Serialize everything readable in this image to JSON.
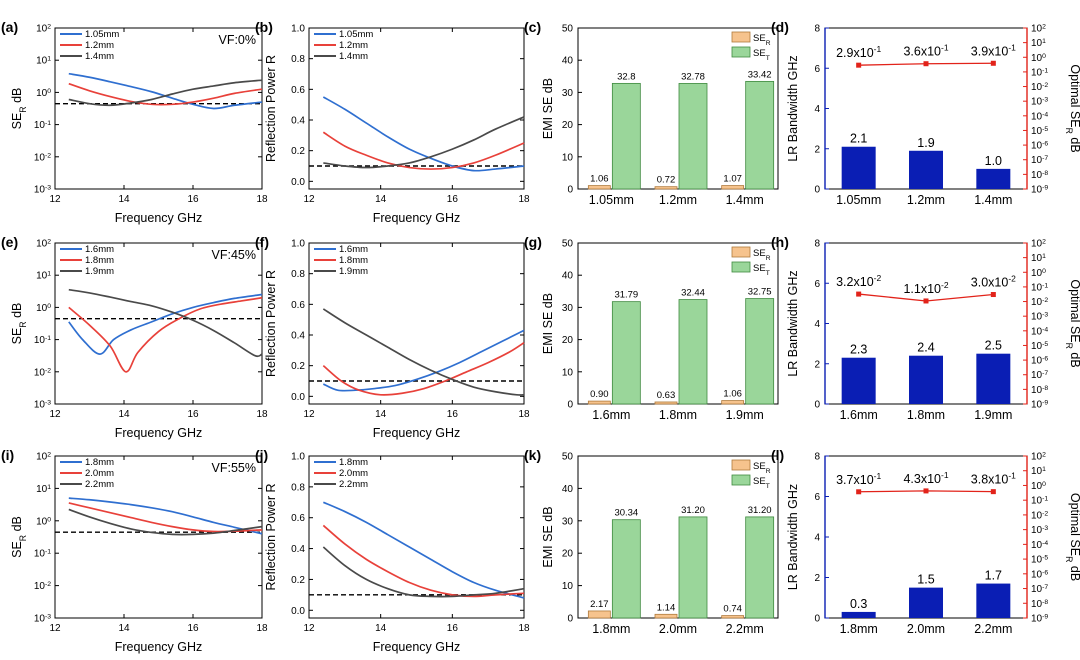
{
  "colors": {
    "blue": "#2f6fd0",
    "red": "#e8413a",
    "gray": "#4a4a4a",
    "bar_r": "#f6c38d",
    "bar_t": "#9ad69a",
    "navy": "#0a1eb4",
    "opt": "#e2231a"
  },
  "chart_data": [
    {
      "panel": "(a)",
      "type": "line",
      "annotation": "VF:0%",
      "xlabel": "Frequency GHz",
      "ylabel": "SE_R dB",
      "log": true,
      "xticks": [
        "12",
        "14",
        "16",
        "18"
      ],
      "yticks": [
        "10^-3",
        "10^-2",
        "10^-1",
        "10^0",
        "10^1",
        "10^2"
      ],
      "xlim": [
        12,
        18
      ],
      "ylim": [
        -3,
        2
      ],
      "threshold": -0.35,
      "series": [
        {
          "name": "1.05mm",
          "color": "blue",
          "x": [
            12.4,
            13,
            13.6,
            14.2,
            14.8,
            15.4,
            16,
            16.6,
            17.2,
            18
          ],
          "y": [
            0.58,
            0.47,
            0.33,
            0.18,
            0.02,
            -0.18,
            -0.37,
            -0.5,
            -0.4,
            -0.3
          ]
        },
        {
          "name": "1.2mm",
          "color": "red",
          "x": [
            12.4,
            13,
            13.6,
            14.2,
            14.8,
            15.4,
            16,
            16.6,
            17.2,
            18
          ],
          "y": [
            0.27,
            0.05,
            -0.13,
            -0.28,
            -0.37,
            -0.37,
            -0.3,
            -0.18,
            -0.03,
            0.1
          ]
        },
        {
          "name": "1.4mm",
          "color": "gray",
          "x": [
            12.4,
            13,
            13.6,
            14.2,
            14.8,
            15.4,
            16,
            16.6,
            17.2,
            18
          ],
          "y": [
            -0.22,
            -0.35,
            -0.4,
            -0.33,
            -0.22,
            -0.05,
            0.1,
            0.2,
            0.3,
            0.38
          ]
        }
      ]
    },
    {
      "panel": "(b)",
      "type": "line",
      "xlabel": "Frequency GHz",
      "ylabel": "Reflection Power R",
      "xticks": [
        "12",
        "14",
        "16",
        "18"
      ],
      "yticks": [
        "0.0",
        "0.2",
        "0.4",
        "0.6",
        "0.8",
        "1.0"
      ],
      "xlim": [
        12,
        18
      ],
      "ylim": [
        -0.05,
        1.0
      ],
      "threshold": 0.1,
      "series": [
        {
          "name": "1.05mm",
          "color": "blue",
          "x": [
            12.4,
            13,
            13.6,
            14.2,
            14.8,
            15.4,
            16,
            16.6,
            17.2,
            18
          ],
          "y": [
            0.55,
            0.47,
            0.38,
            0.29,
            0.21,
            0.15,
            0.1,
            0.07,
            0.08,
            0.1
          ]
        },
        {
          "name": "1.2mm",
          "color": "red",
          "x": [
            12.4,
            13,
            13.6,
            14.2,
            14.8,
            15.4,
            16,
            16.6,
            17.2,
            18
          ],
          "y": [
            0.32,
            0.23,
            0.17,
            0.12,
            0.09,
            0.08,
            0.09,
            0.12,
            0.17,
            0.25
          ]
        },
        {
          "name": "1.4mm",
          "color": "gray",
          "x": [
            12.4,
            13,
            13.6,
            14.2,
            14.8,
            15.4,
            16,
            16.6,
            17.2,
            18
          ],
          "y": [
            0.12,
            0.1,
            0.09,
            0.1,
            0.12,
            0.16,
            0.21,
            0.27,
            0.34,
            0.42
          ]
        }
      ]
    },
    {
      "panel": "(c)",
      "type": "bar",
      "ylabel": "EMI SE dB",
      "categories": [
        "1.05mm",
        "1.2mm",
        "1.4mm"
      ],
      "yticks": [
        "0",
        "10",
        "20",
        "30",
        "40",
        "50"
      ],
      "ylim": [
        0,
        50
      ],
      "legend": [
        "SE_R",
        "SE_T"
      ],
      "se_r": [
        1.06,
        0.72,
        1.07
      ],
      "se_t": [
        32.8,
        32.78,
        33.42
      ],
      "se_r_labels": [
        "1.06",
        "0.72",
        "1.07"
      ],
      "se_t_labels": [
        "32.8",
        "32.78",
        "33.42"
      ]
    },
    {
      "panel": "(d)",
      "type": "bar",
      "ylabel": "LR Bandwidth GHz",
      "ylabel2": "Optimal SE_R dB",
      "categories": [
        "1.05mm",
        "1.2mm",
        "1.4mm"
      ],
      "yticks": [
        "0",
        "2",
        "4",
        "6",
        "8"
      ],
      "ylim": [
        0,
        8
      ],
      "values": [
        2.1,
        1.9,
        1.0
      ],
      "value_labels": [
        "2.1",
        "1.9",
        "1.0"
      ],
      "optimal_exp": [
        -0.54,
        -0.44,
        -0.41
      ],
      "optimal_labels": [
        [
          "2.9x10",
          "-1"
        ],
        [
          "3.6x10",
          "-1"
        ],
        [
          "3.9x10",
          "-1"
        ]
      ]
    },
    {
      "panel": "(e)",
      "type": "line",
      "annotation": "VF:45%",
      "xlabel": "Frequency GHz",
      "ylabel": "SE_R dB",
      "log": true,
      "xticks": [
        "12",
        "14",
        "16",
        "18"
      ],
      "yticks": [
        "10^-3",
        "10^-2",
        "10^-1",
        "10^0",
        "10^1",
        "10^2"
      ],
      "xlim": [
        12,
        18
      ],
      "ylim": [
        -3,
        2
      ],
      "threshold": -0.35,
      "series": [
        {
          "name": "1.6mm",
          "color": "blue",
          "x": [
            12.4,
            12.8,
            13.3,
            13.7,
            14.2,
            14.8,
            15.4,
            16,
            16.6,
            17.2,
            18
          ],
          "y": [
            -0.45,
            -1.0,
            -1.45,
            -1.0,
            -0.7,
            -0.45,
            -0.2,
            0,
            0.15,
            0.28,
            0.4
          ]
        },
        {
          "name": "1.8mm",
          "color": "red",
          "x": [
            12.4,
            13,
            13.6,
            14.05,
            14.4,
            15,
            15.6,
            16.2,
            16.8,
            17.4,
            18
          ],
          "y": [
            0,
            -0.55,
            -1.2,
            -2.0,
            -1.4,
            -0.75,
            -0.35,
            -0.05,
            0.1,
            0.2,
            0.3
          ]
        },
        {
          "name": "1.9mm",
          "color": "gray",
          "x": [
            12.4,
            13,
            13.6,
            14.2,
            14.8,
            15.4,
            16,
            16.6,
            17.2,
            17.8,
            18
          ],
          "y": [
            0.55,
            0.45,
            0.32,
            0.18,
            0.05,
            -0.15,
            -0.4,
            -0.72,
            -1.1,
            -1.5,
            -1.45
          ]
        }
      ]
    },
    {
      "panel": "(f)",
      "type": "line",
      "xlabel": "Frequency GHz",
      "ylabel": "Reflection Power R",
      "xticks": [
        "12",
        "14",
        "16",
        "18"
      ],
      "yticks": [
        "0.0",
        "0.2",
        "0.4",
        "0.6",
        "0.8",
        "1.0"
      ],
      "xlim": [
        12,
        18
      ],
      "ylim": [
        -0.05,
        1.0
      ],
      "threshold": 0.1,
      "series": [
        {
          "name": "1.6mm",
          "color": "blue",
          "x": [
            12.4,
            12.8,
            13.3,
            13.8,
            14.4,
            15,
            15.6,
            16.2,
            16.8,
            17.4,
            18
          ],
          "y": [
            0.08,
            0.04,
            0.04,
            0.05,
            0.07,
            0.11,
            0.16,
            0.22,
            0.29,
            0.36,
            0.43
          ]
        },
        {
          "name": "1.8mm",
          "color": "red",
          "x": [
            12.4,
            12.9,
            13.4,
            14,
            14.6,
            15.2,
            15.8,
            16.4,
            17,
            17.6,
            18
          ],
          "y": [
            0.2,
            0.1,
            0.04,
            0.01,
            0.02,
            0.05,
            0.1,
            0.16,
            0.22,
            0.29,
            0.35
          ]
        },
        {
          "name": "1.9mm",
          "color": "gray",
          "x": [
            12.4,
            13,
            13.6,
            14.2,
            14.8,
            15.4,
            16,
            16.6,
            17.2,
            17.8,
            18
          ],
          "y": [
            0.57,
            0.48,
            0.4,
            0.32,
            0.24,
            0.17,
            0.11,
            0.06,
            0.03,
            0.01,
            0.01
          ]
        }
      ]
    },
    {
      "panel": "(g)",
      "type": "bar",
      "ylabel": "EMI SE dB",
      "categories": [
        "1.6mm",
        "1.8mm",
        "1.9mm"
      ],
      "yticks": [
        "0",
        "10",
        "20",
        "30",
        "40",
        "50"
      ],
      "ylim": [
        0,
        50
      ],
      "legend": [
        "SE_R",
        "SE_T"
      ],
      "se_r": [
        0.9,
        0.63,
        1.06
      ],
      "se_t": [
        31.79,
        32.44,
        32.75
      ],
      "se_r_labels": [
        "0.90",
        "0.63",
        "1.06"
      ],
      "se_t_labels": [
        "31.79",
        "32.44",
        "32.75"
      ]
    },
    {
      "panel": "(h)",
      "type": "bar",
      "ylabel": "LR Bandwidth GHz",
      "ylabel2": "Optimal SE_R dB",
      "categories": [
        "1.6mm",
        "1.8mm",
        "1.9mm"
      ],
      "yticks": [
        "0",
        "2",
        "4",
        "6",
        "8"
      ],
      "ylim": [
        0,
        8
      ],
      "values": [
        2.3,
        2.4,
        2.5
      ],
      "value_labels": [
        "2.3",
        "2.4",
        "2.5"
      ],
      "optimal_exp": [
        -1.49,
        -1.96,
        -1.52
      ],
      "optimal_labels": [
        [
          "3.2x10",
          "-2"
        ],
        [
          "1.1x10",
          "-2"
        ],
        [
          "3.0x10",
          "-2"
        ]
      ]
    },
    {
      "panel": "(i)",
      "type": "line",
      "annotation": "VF:55%",
      "xlabel": "Frequency GHz",
      "ylabel": "SE_R dB",
      "log": true,
      "xticks": [
        "12",
        "14",
        "16",
        "18"
      ],
      "yticks": [
        "10^-3",
        "10^-2",
        "10^-1",
        "10^0",
        "10^1",
        "10^2"
      ],
      "xlim": [
        12,
        18
      ],
      "ylim": [
        -3,
        2
      ],
      "threshold": -0.35,
      "series": [
        {
          "name": "1.8mm",
          "color": "blue",
          "x": [
            12.4,
            13,
            13.6,
            14.2,
            14.8,
            15.4,
            16,
            16.6,
            17.2,
            18
          ],
          "y": [
            0.7,
            0.65,
            0.58,
            0.5,
            0.4,
            0.28,
            0.12,
            -0.05,
            -0.2,
            -0.4
          ]
        },
        {
          "name": "2.0mm",
          "color": "red",
          "x": [
            12.4,
            13,
            13.6,
            14.2,
            14.8,
            15.4,
            16,
            16.6,
            17.2,
            18
          ],
          "y": [
            0.55,
            0.4,
            0.25,
            0.1,
            -0.05,
            -0.18,
            -0.28,
            -0.33,
            -0.32,
            -0.28
          ]
        },
        {
          "name": "2.2mm",
          "color": "gray",
          "x": [
            12.4,
            13,
            13.6,
            14.2,
            14.8,
            15.4,
            16,
            16.6,
            17.2,
            18
          ],
          "y": [
            0.35,
            0.12,
            -0.08,
            -0.25,
            -0.36,
            -0.42,
            -0.42,
            -0.38,
            -0.3,
            -0.18
          ]
        }
      ]
    },
    {
      "panel": "(j)",
      "type": "line",
      "xlabel": "Frequency GHz",
      "ylabel": "Reflection Power R",
      "xticks": [
        "12",
        "14",
        "16",
        "18"
      ],
      "yticks": [
        "0.0",
        "0.2",
        "0.4",
        "0.6",
        "0.8",
        "1.0"
      ],
      "xlim": [
        12,
        18
      ],
      "ylim": [
        -0.05,
        1.0
      ],
      "threshold": 0.1,
      "series": [
        {
          "name": "1.8mm",
          "color": "blue",
          "x": [
            12.4,
            13,
            13.6,
            14.2,
            14.8,
            15.4,
            16,
            16.6,
            17.2,
            18
          ],
          "y": [
            0.7,
            0.64,
            0.57,
            0.49,
            0.41,
            0.33,
            0.25,
            0.18,
            0.13,
            0.08
          ]
        },
        {
          "name": "2.0mm",
          "color": "red",
          "x": [
            12.4,
            13,
            13.6,
            14.2,
            14.8,
            15.4,
            16,
            16.6,
            17.2,
            18
          ],
          "y": [
            0.55,
            0.43,
            0.33,
            0.25,
            0.18,
            0.13,
            0.1,
            0.09,
            0.1,
            0.11
          ]
        },
        {
          "name": "2.2mm",
          "color": "gray",
          "x": [
            12.4,
            13,
            13.6,
            14.2,
            14.8,
            15.4,
            16,
            16.6,
            17.2,
            18
          ],
          "y": [
            0.41,
            0.29,
            0.2,
            0.14,
            0.1,
            0.09,
            0.09,
            0.1,
            0.11,
            0.14
          ]
        }
      ]
    },
    {
      "panel": "(k)",
      "type": "bar",
      "ylabel": "EMI SE dB",
      "categories": [
        "1.8mm",
        "2.0mm",
        "2.2mm"
      ],
      "yticks": [
        "0",
        "10",
        "20",
        "30",
        "40",
        "50"
      ],
      "ylim": [
        0,
        50
      ],
      "legend": [
        "SE_R",
        "SE_T"
      ],
      "se_r": [
        2.17,
        1.14,
        0.74
      ],
      "se_t": [
        30.34,
        31.2,
        31.2
      ],
      "se_r_labels": [
        "2.17",
        "1.14",
        "0.74"
      ],
      "se_t_labels": [
        "30.34",
        "31.20",
        "31.20"
      ]
    },
    {
      "panel": "(l)",
      "type": "bar",
      "ylabel": "LR Bandwidth GHz",
      "ylabel2": "Optimal SE_R dB",
      "categories": [
        "1.8mm",
        "2.0mm",
        "2.2mm"
      ],
      "yticks": [
        "0",
        "2",
        "4",
        "6",
        "8"
      ],
      "ylim": [
        0,
        8
      ],
      "values": [
        0.3,
        1.5,
        1.7
      ],
      "value_labels": [
        "0.3",
        "1.5",
        "1.7"
      ],
      "optimal_exp": [
        -0.43,
        -0.37,
        -0.42
      ],
      "optimal_labels": [
        [
          "3.7x10",
          "-1"
        ],
        [
          "4.3x10",
          "-1"
        ],
        [
          "3.8x10",
          "-1"
        ]
      ]
    }
  ],
  "right_axis_ticks": [
    "10^2",
    "10^1",
    "10^0",
    "10^-1",
    "10^-2",
    "10^-3",
    "10^-4",
    "10^-5",
    "10^-6",
    "10^-7",
    "10^-8",
    "10^-9"
  ]
}
